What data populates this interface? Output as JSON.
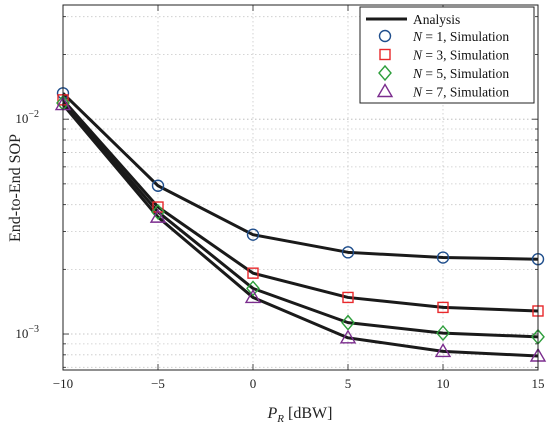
{
  "chart_data": {
    "type": "line",
    "xlabel": "P_R [dBW]",
    "ylabel": "End-to-End SOP",
    "y_scale": "log",
    "x": [
      -10,
      -5,
      0,
      5,
      10,
      15
    ],
    "xlim": [
      -10,
      15
    ],
    "ylim": [
      0.00068,
      0.034
    ],
    "x_ticks": [
      -10,
      -5,
      0,
      5,
      10,
      15
    ],
    "x_tick_labels": [
      "−10",
      "−5",
      "0",
      "5",
      "10",
      "15"
    ],
    "y_ticks": [
      0.01,
      0.001
    ],
    "grid": true,
    "legend_position": "top-right",
    "analysis_color": "#1a1a1a",
    "series": [
      {
        "name": "N = 1, Simulation",
        "label_var": "N",
        "label_rest": " = 1, Simulation",
        "marker": "circle",
        "color": "#1f4e8c",
        "values": [
          0.0132,
          0.0049,
          0.0029,
          0.0024,
          0.00227,
          0.00223
        ]
      },
      {
        "name": "N = 3, Simulation",
        "label_var": "N",
        "label_rest": " = 3, Simulation",
        "marker": "square",
        "color": "#e8282b",
        "values": [
          0.0123,
          0.0039,
          0.00192,
          0.00148,
          0.00133,
          0.00128
        ]
      },
      {
        "name": "N = 5, Simulation",
        "label_var": "N",
        "label_rest": " = 5, Simulation",
        "marker": "diamond",
        "color": "#2e9e3c",
        "values": [
          0.0119,
          0.0037,
          0.00163,
          0.00113,
          0.00101,
          0.00097
        ]
      },
      {
        "name": "N = 7, Simulation",
        "label_var": "N",
        "label_rest": " = 7, Simulation",
        "marker": "triangle",
        "color": "#7b2d8e",
        "values": [
          0.0117,
          0.0035,
          0.00148,
          0.00096,
          0.00083,
          0.00079
        ]
      }
    ],
    "analysis_label": "Analysis"
  }
}
